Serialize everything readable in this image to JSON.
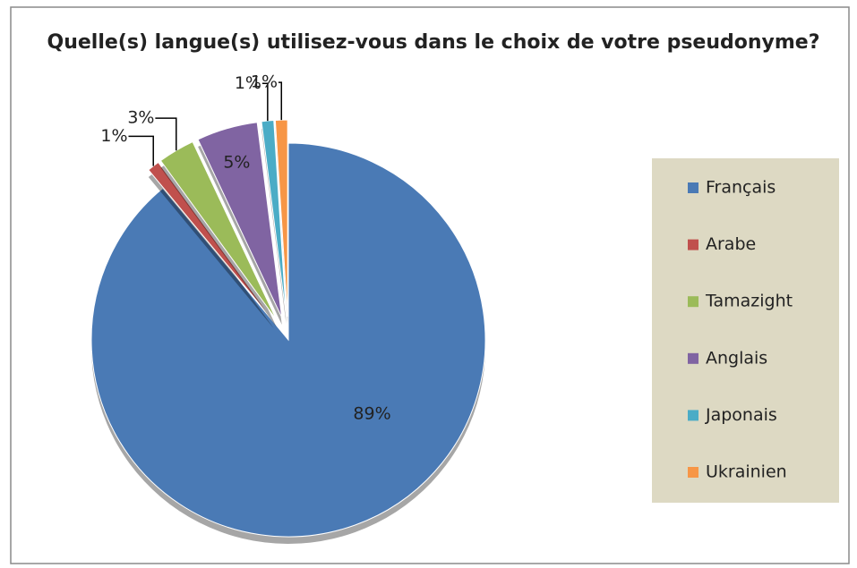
{
  "chart_data": {
    "type": "pie",
    "title": "Quelle(s) langue(s) utilisez-vous dans le choix de votre pseudonyme?",
    "categories": [
      "Français",
      "Arabe",
      "Tamazight",
      "Anglais",
      "Japonais",
      "Ukrainien"
    ],
    "values": [
      89,
      1,
      3,
      5,
      1,
      1
    ],
    "value_labels": [
      "89%",
      "1%",
      "3%",
      "5%",
      "1%",
      "1%"
    ],
    "colors": [
      "#4a7ab5",
      "#c0504d",
      "#9bbb59",
      "#8064a2",
      "#4bacc6",
      "#f79646"
    ],
    "legend": "right"
  }
}
